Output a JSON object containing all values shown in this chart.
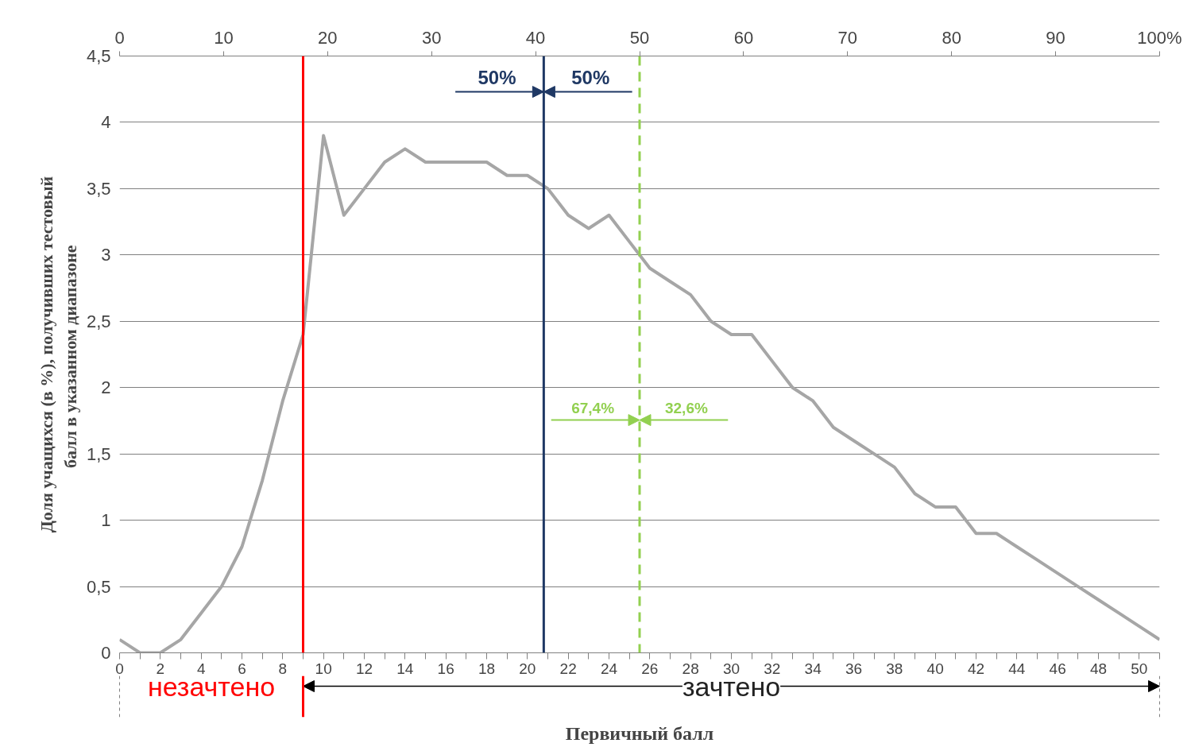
{
  "chart_data": {
    "type": "line",
    "xlabel": "Первичный балл",
    "ylabel": "Доля учащихся (в %), получивших тестовый балл  в указанном диапазоне",
    "x": [
      0,
      1,
      2,
      3,
      4,
      5,
      6,
      7,
      8,
      9,
      10,
      11,
      12,
      13,
      14,
      15,
      16,
      17,
      18,
      19,
      20,
      21,
      22,
      23,
      24,
      25,
      26,
      27,
      28,
      29,
      30,
      31,
      32,
      33,
      34,
      35,
      36,
      37,
      38,
      39,
      40,
      41,
      42,
      43,
      44,
      45,
      46,
      47,
      48,
      49,
      50,
      51
    ],
    "series": [
      {
        "color": "#a6a6a6",
        "values": [
          0.1,
          0,
          0,
          0.1,
          0.3,
          0.5,
          0.8,
          1.3,
          1.9,
          2.4,
          3.9,
          3.3,
          3.5,
          3.7,
          3.8,
          3.7,
          3.7,
          3.7,
          3.7,
          3.6,
          3.6,
          3.5,
          3.3,
          3.2,
          3.3,
          3.1,
          2.9,
          2.8,
          2.7,
          2.5,
          2.4,
          2.4,
          2.2,
          2.0,
          1.9,
          1.7,
          1.6,
          1.5,
          1.4,
          1.2,
          1.1,
          1.1,
          0.9,
          0.9,
          0.8,
          0.7,
          0.6,
          0.5,
          0.4,
          0.3,
          0.2,
          0.1
        ]
      }
    ],
    "xlim": [
      0,
      51
    ],
    "xticks": [
      0,
      {
        "value": 1,
        "label": null
      },
      2,
      {
        "value": 3,
        "label": null
      },
      4,
      {
        "value": 5,
        "label": null
      },
      6,
      {
        "value": 7,
        "label": null
      },
      8,
      {
        "value": 9,
        "label": null
      },
      10,
      {
        "value": 11,
        "label": null
      },
      12,
      {
        "value": 13,
        "label": null
      },
      14,
      {
        "value": 15,
        "label": null
      },
      16,
      {
        "value": 17,
        "label": null
      },
      18,
      {
        "value": 19,
        "label": null
      },
      20,
      {
        "value": 21,
        "label": null
      },
      22,
      {
        "value": 23,
        "label": null
      },
      24,
      {
        "value": 25,
        "label": null
      },
      26,
      {
        "value": 27,
        "label": null
      },
      28,
      {
        "value": 29,
        "label": null
      },
      30,
      {
        "value": 31,
        "label": null
      },
      32,
      {
        "value": 33,
        "label": null
      },
      34,
      {
        "value": 35,
        "label": null
      },
      36,
      {
        "value": 37,
        "label": null
      },
      38,
      {
        "value": 39,
        "label": null
      },
      40,
      {
        "value": 41,
        "label": null
      },
      42,
      {
        "value": 43,
        "label": null
      },
      44,
      {
        "value": 45,
        "label": null
      },
      46,
      {
        "value": 47,
        "label": null
      },
      48,
      {
        "value": 49,
        "label": null
      },
      50,
      {
        "value": 51,
        "label": null
      }
    ],
    "x2lim": [
      0,
      100
    ],
    "x2ticks": [
      0,
      10,
      20,
      30,
      40,
      50,
      60,
      70,
      80,
      90,
      {
        "value": 100,
        "label": "100%"
      }
    ],
    "ylim": [
      0,
      4.5
    ],
    "yticks": [
      0,
      {
        "value": 0.5,
        "label": "0,5"
      },
      1,
      {
        "value": 1.5,
        "label": "1,5"
      },
      2,
      {
        "value": 2.5,
        "label": "2,5"
      },
      3,
      {
        "value": 3.5,
        "label": "3,5"
      },
      4,
      {
        "value": 4.5,
        "label": "4,5"
      }
    ],
    "grid": "y",
    "marker": "none",
    "line_style": "solid",
    "ref_lines": [
      {
        "axis": "x",
        "value": 9,
        "color": "#ff0000",
        "line_style": "solid"
      },
      {
        "axis": "x",
        "value": 20.8,
        "color": "#1f3864",
        "line_style": "solid"
      },
      {
        "axis": "x",
        "value": 25.5,
        "color": "#92d050",
        "line_style": "dashed"
      }
    ],
    "annotations": [
      "50%",
      "50%",
      "67,4%",
      "32,6%",
      "незачтено",
      "зачтено"
    ]
  }
}
